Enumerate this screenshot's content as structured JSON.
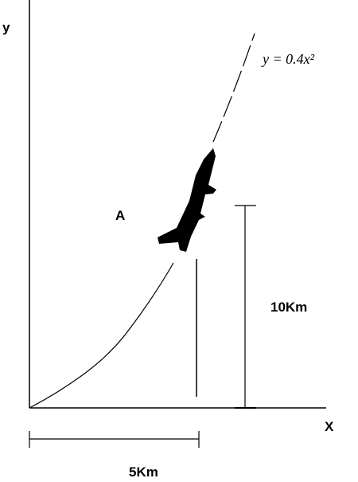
{
  "labels": {
    "y_axis": "y",
    "x_axis": "X",
    "point": "A",
    "equation": "y = 0.4x²",
    "height": "10Km",
    "distance": "5Km"
  }
}
